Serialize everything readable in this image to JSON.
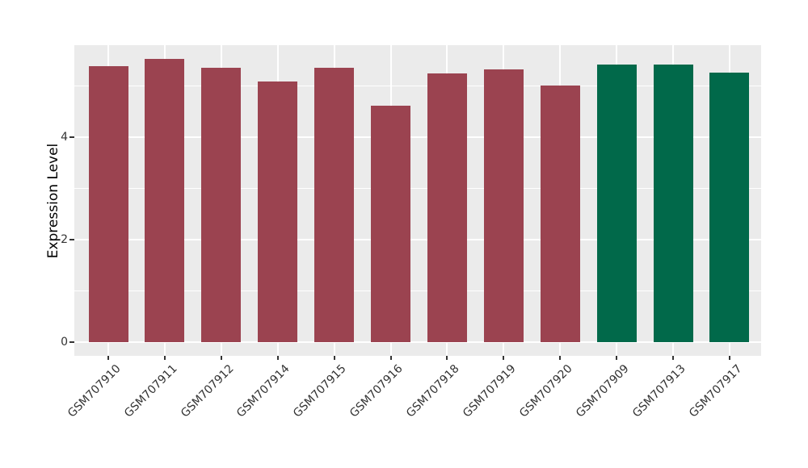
{
  "chart_data": {
    "type": "bar",
    "title": "",
    "xlabel": "",
    "ylabel": "Expression Level",
    "categories": [
      "GSM707910",
      "GSM707911",
      "GSM707912",
      "GSM707914",
      "GSM707915",
      "GSM707916",
      "GSM707918",
      "GSM707919",
      "GSM707920",
      "GSM707909",
      "GSM707913",
      "GSM707917"
    ],
    "values": [
      5.39,
      5.52,
      5.36,
      5.08,
      5.35,
      4.62,
      5.24,
      5.32,
      5.01,
      5.41,
      5.41,
      5.26
    ],
    "bar_groups": [
      "red",
      "red",
      "red",
      "red",
      "red",
      "red",
      "red",
      "red",
      "red",
      "green",
      "green",
      "green"
    ],
    "group_colors": {
      "red": "#9B4350",
      "green": "#01694A"
    },
    "y_major_ticks": [
      0,
      2,
      4
    ],
    "y_minor_ticks": [
      1,
      3,
      5
    ],
    "ylim": [
      -0.28,
      5.79
    ],
    "grid": "on",
    "legend": "none",
    "panel_background": "#EBEBEB",
    "gridline_color": "#FFFFFF",
    "tick_mark_color": "#333333",
    "tick_label_color": "#333333",
    "axis_title_color": "#000000"
  }
}
